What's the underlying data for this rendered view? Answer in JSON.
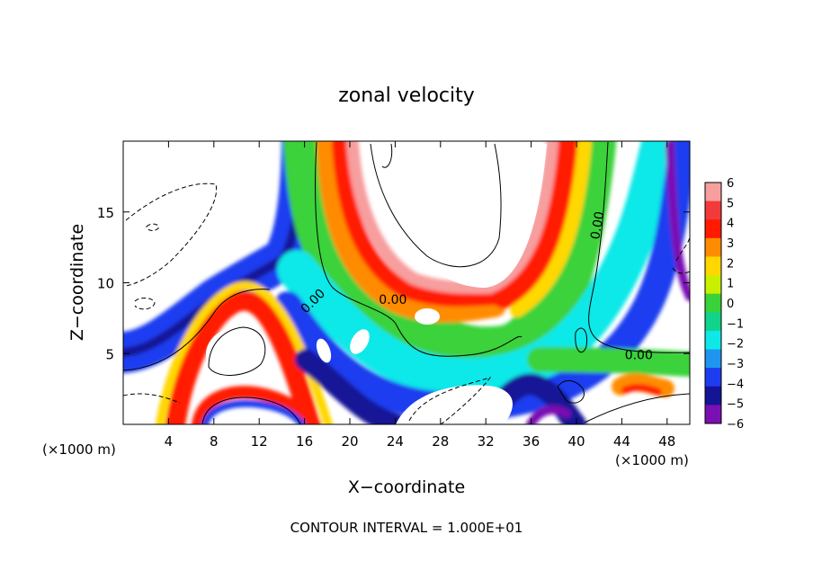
{
  "chart_data": {
    "type": "heatmap",
    "title": "zonal velocity",
    "xlabel": "X−coordinate",
    "ylabel": "Z−coordinate",
    "x_unit_left": "(×1000 m)",
    "x_unit_right": "(×1000 m)",
    "footer": "CONTOUR INTERVAL = 1.000E+01",
    "xlim": [
      0,
      50
    ],
    "ylim": [
      0,
      20
    ],
    "x_ticks": [
      4,
      8,
      12,
      16,
      20,
      24,
      28,
      32,
      36,
      40,
      44,
      48
    ],
    "x_tick_labels": [
      "4",
      "8",
      "12",
      "16",
      "20",
      "24",
      "28",
      "32",
      "36",
      "40",
      "44",
      "48"
    ],
    "y_ticks": [
      5,
      10,
      15
    ],
    "y_tick_labels": [
      "5",
      "10",
      "15"
    ],
    "colorbar": {
      "levels": [
        6,
        5,
        4,
        3,
        2,
        1,
        0,
        -1,
        -2,
        -3,
        -4,
        -5,
        -6
      ],
      "labels": [
        "6",
        "5",
        "4",
        "3",
        "2",
        "1",
        "0",
        "−1",
        "−2",
        "−3",
        "−4",
        "−5",
        "−6"
      ],
      "colors": [
        "#f79e9e",
        "#f23a3a",
        "#ff1a00",
        "#ff8c00",
        "#ffd800",
        "#c8f000",
        "#3ad23a",
        "#10d48c",
        "#10e8e8",
        "#1e96f0",
        "#1e3cf0",
        "#141496",
        "#7a10b4"
      ]
    },
    "contour_labels": [
      {
        "text": "0.00",
        "x": 17.0,
        "y": 8.5,
        "angle": -45
      },
      {
        "text": "0.00",
        "x": 23.8,
        "y": 8.5,
        "angle": 0
      },
      {
        "text": "0.00",
        "x": 42.2,
        "y": 14.0,
        "angle": -80
      },
      {
        "text": "0.00",
        "x": 45.5,
        "y": 4.6,
        "angle": 0
      }
    ]
  }
}
